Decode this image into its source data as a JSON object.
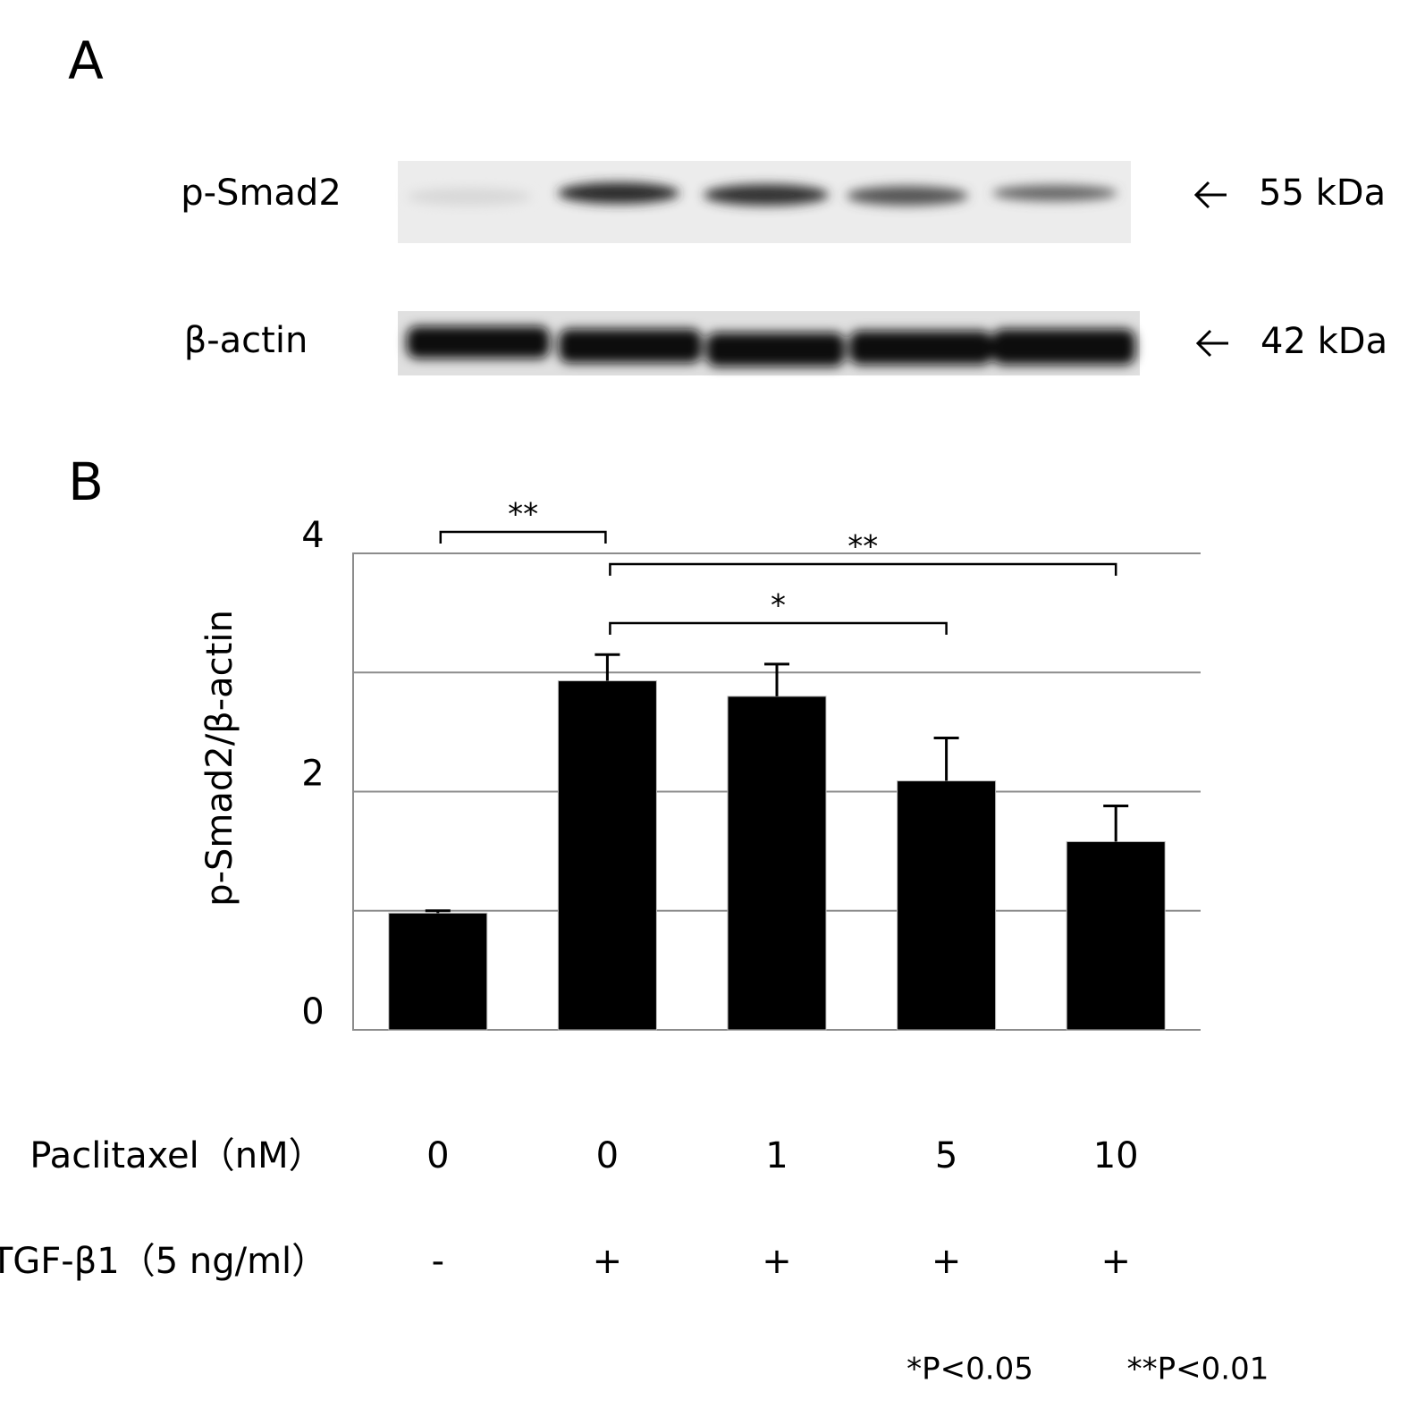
{
  "panel_labels": [
    "A",
    "B"
  ],
  "blot": {
    "bands": [
      {
        "label": "p-Smad2",
        "size": "55 kDa"
      },
      {
        "label": "β-actin",
        "size": "42 kDa"
      }
    ]
  },
  "chart_data": {
    "type": "bar",
    "y_label": "p-Smad2/β-actin",
    "categories": [
      "0",
      "0",
      "1",
      "5",
      "10"
    ],
    "category_label": "Paclitaxel（nM）",
    "second_row": {
      "label": "TGF-β1（5 ng/ml）",
      "values": [
        "-",
        "+",
        "+",
        "+",
        "+"
      ]
    },
    "values": [
      0.98,
      2.93,
      2.8,
      2.09,
      1.58
    ],
    "errors": [
      0.02,
      0.22,
      0.27,
      0.36,
      0.3
    ],
    "color": "#000000",
    "ylim": [
      0,
      4
    ],
    "yticks": [
      0,
      2,
      4
    ],
    "grid_lines": [
      1,
      2,
      3,
      4
    ],
    "annotations": [
      {
        "text": "**",
        "from": 0,
        "to": 1
      },
      {
        "text": "**",
        "from": 1,
        "to": 4
      },
      {
        "text": "*",
        "from": 1,
        "to": 3
      }
    ],
    "footnotes": [
      "*P<0.05",
      "**P<0.01"
    ]
  }
}
